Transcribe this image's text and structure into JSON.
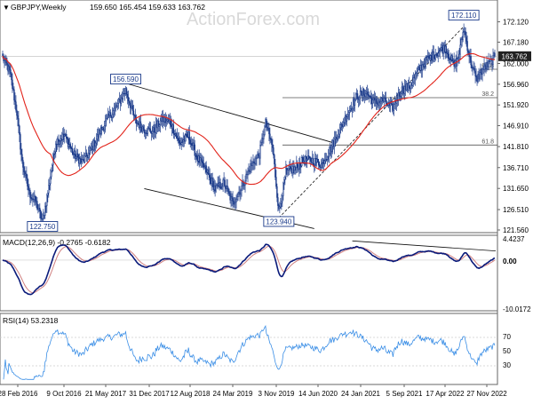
{
  "header": {
    "symbol": "GBPJPY,Weekly",
    "ohlc": "159.650 165.454 159.633 163.762"
  },
  "watermark": "ActionForex.com",
  "colors": {
    "candle": "#1a3a8a",
    "ma": "#e2231a",
    "macd": "#0a1a7a",
    "signal": "#d08080",
    "rsi": "#3a8ee6",
    "trendline": "#111111",
    "fib": "#555555",
    "price_box_bg": "#ffffff",
    "last_box_bg": "#222222"
  },
  "chart_data": [
    {
      "type": "candlestick",
      "title": "GBPJPY,Weekly",
      "ylim": [
        121.56,
        174.4
      ],
      "y_ticks": [
        "172.120",
        "167.180",
        "162.000",
        "156.960",
        "151.920",
        "146.910",
        "141.810",
        "136.710",
        "131.650",
        "126.510",
        "121.560"
      ],
      "x_labels": [
        "28 Feb 2016",
        "9 Oct 2016",
        "21 May 2017",
        "31 Dec 2017",
        "12 Aug 2018",
        "24 Mar 2019",
        "3 Nov 2019",
        "14 Jun 2020",
        "24 Jan 2021",
        "5 Sep 2021",
        "17 Apr 2022",
        "27 Nov 2022"
      ],
      "last_price": "163.762",
      "annotations": [
        {
          "label": "122.750",
          "x_index": 45,
          "y": 122.75
        },
        {
          "label": "156.590",
          "x_index": 139,
          "y": 156.59
        },
        {
          "label": "123.940",
          "x_index": 312,
          "y": 123.94
        },
        {
          "label": "172.110",
          "x_index": 521,
          "y": 172.11
        }
      ],
      "fib_levels": [
        {
          "label": "38.2",
          "y": 153.7
        },
        {
          "label": "61.8",
          "y": 142.2
        },
        {
          "label": "61.8",
          "y": 160.6
        }
      ],
      "anchors": [
        {
          "i": 0,
          "p": 163.5
        },
        {
          "i": 8,
          "p": 160.0
        },
        {
          "i": 16,
          "p": 150.0
        },
        {
          "i": 22,
          "p": 138.0
        },
        {
          "i": 30,
          "p": 130.5
        },
        {
          "i": 38,
          "p": 128.0
        },
        {
          "i": 45,
          "p": 123.5
        },
        {
          "i": 52,
          "p": 132.0
        },
        {
          "i": 60,
          "p": 143.0
        },
        {
          "i": 70,
          "p": 144.5
        },
        {
          "i": 80,
          "p": 140.0
        },
        {
          "i": 90,
          "p": 138.0
        },
        {
          "i": 100,
          "p": 141.0
        },
        {
          "i": 110,
          "p": 145.5
        },
        {
          "i": 120,
          "p": 149.0
        },
        {
          "i": 130,
          "p": 152.0
        },
        {
          "i": 139,
          "p": 155.5
        },
        {
          "i": 150,
          "p": 148.0
        },
        {
          "i": 160,
          "p": 146.0
        },
        {
          "i": 170,
          "p": 145.5
        },
        {
          "i": 180,
          "p": 148.5
        },
        {
          "i": 190,
          "p": 147.5
        },
        {
          "i": 200,
          "p": 142.5
        },
        {
          "i": 210,
          "p": 144.5
        },
        {
          "i": 220,
          "p": 139.0
        },
        {
          "i": 230,
          "p": 136.0
        },
        {
          "i": 240,
          "p": 131.5
        },
        {
          "i": 250,
          "p": 133.0
        },
        {
          "i": 260,
          "p": 128.0
        },
        {
          "i": 270,
          "p": 132.0
        },
        {
          "i": 280,
          "p": 137.0
        },
        {
          "i": 290,
          "p": 140.0
        },
        {
          "i": 297,
          "p": 147.5
        },
        {
          "i": 305,
          "p": 141.5
        },
        {
          "i": 312,
          "p": 126.0
        },
        {
          "i": 320,
          "p": 135.5
        },
        {
          "i": 330,
          "p": 136.5
        },
        {
          "i": 340,
          "p": 138.5
        },
        {
          "i": 350,
          "p": 138.5
        },
        {
          "i": 360,
          "p": 137.5
        },
        {
          "i": 370,
          "p": 141.0
        },
        {
          "i": 380,
          "p": 145.5
        },
        {
          "i": 390,
          "p": 150.0
        },
        {
          "i": 400,
          "p": 154.0
        },
        {
          "i": 410,
          "p": 155.0
        },
        {
          "i": 420,
          "p": 152.5
        },
        {
          "i": 430,
          "p": 153.0
        },
        {
          "i": 440,
          "p": 151.0
        },
        {
          "i": 450,
          "p": 155.5
        },
        {
          "i": 460,
          "p": 156.5
        },
        {
          "i": 470,
          "p": 160.5
        },
        {
          "i": 480,
          "p": 163.0
        },
        {
          "i": 490,
          "p": 164.5
        },
        {
          "i": 500,
          "p": 166.0
        },
        {
          "i": 510,
          "p": 161.5
        },
        {
          "i": 515,
          "p": 163.5
        },
        {
          "i": 521,
          "p": 170.5
        },
        {
          "i": 528,
          "p": 163.0
        },
        {
          "i": 535,
          "p": 158.0
        },
        {
          "i": 542,
          "p": 160.5
        },
        {
          "i": 550,
          "p": 162.0
        },
        {
          "i": 556,
          "p": 163.7
        }
      ]
    },
    {
      "type": "line",
      "title": "MACD(12,26,9) -0.2765 -0.6182",
      "ylim": [
        -10.0172,
        4.4237
      ],
      "y_ticks": [
        "4.4237",
        "0.00",
        "-10.0172"
      ],
      "series": [
        {
          "name": "MACD",
          "role": "macd"
        },
        {
          "name": "Signal",
          "role": "signal"
        }
      ]
    },
    {
      "type": "line",
      "title": "RSI(14) 53.2318",
      "ylim": [
        0,
        100
      ],
      "y_ticks": [
        "70",
        "50",
        "30"
      ],
      "series": [
        {
          "name": "RSI(14)",
          "role": "rsi"
        }
      ]
    }
  ]
}
